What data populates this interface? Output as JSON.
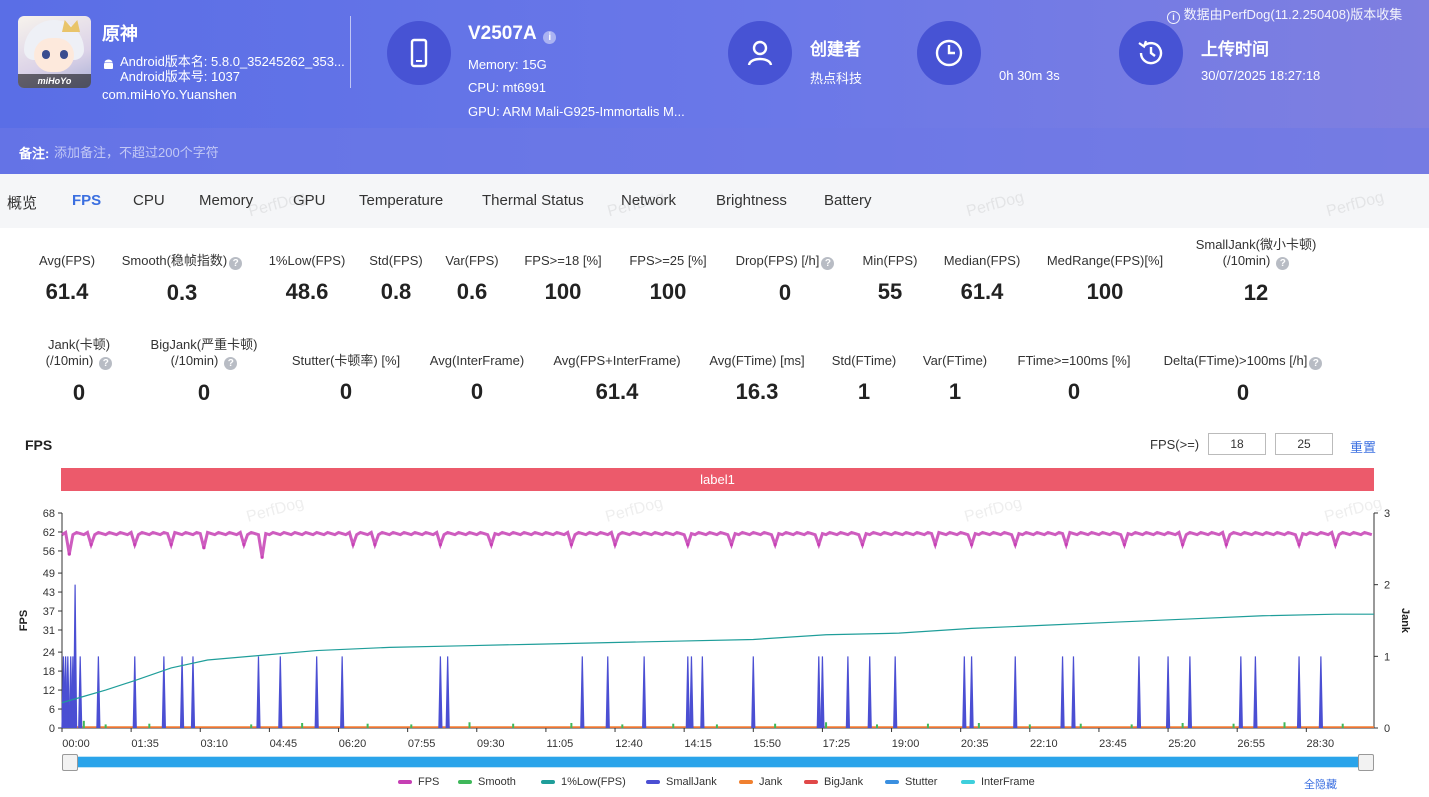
{
  "header": {
    "app_name": "原神",
    "app_icon_brand": "miHoYo",
    "android_version_name": "Android版本名: 5.8.0_35245262_353...",
    "android_version_code": "Android版本号: 1037",
    "package": "com.miHoYo.Yuanshen",
    "device_model": "V2507A",
    "memory": "Memory: 15G",
    "cpu": "CPU: mt6991",
    "gpu": "GPU: ARM Mali-G925-Immortalis M...",
    "creator_label": "创建者",
    "creator_value": "热点科技",
    "duration": "0h 30m 3s",
    "upload_label": "上传时间",
    "upload_time": "30/07/2025 18:27:18",
    "source_note": "数据由PerfDog(11.2.250408)版本收集",
    "remark_label": "备注:",
    "remark_placeholder": "添加备注，不超过200个字符"
  },
  "tabs": [
    "概览",
    "FPS",
    "CPU",
    "Memory",
    "GPU",
    "Temperature",
    "Thermal Status",
    "Network",
    "Brightness",
    "Battery"
  ],
  "active_tab": "FPS",
  "watermark": "PerfDog",
  "metrics_row1": [
    {
      "label": "Avg(FPS)",
      "value": "61.4"
    },
    {
      "label": "Smooth(稳帧指数)",
      "value": "0.3",
      "help": true
    },
    {
      "label": "1%Low(FPS)",
      "value": "48.6"
    },
    {
      "label": "Std(FPS)",
      "value": "0.8"
    },
    {
      "label": "Var(FPS)",
      "value": "0.6"
    },
    {
      "label": "FPS>=18 [%]",
      "value": "100"
    },
    {
      "label": "FPS>=25 [%]",
      "value": "100"
    },
    {
      "label": "Drop(FPS) [/h]",
      "value": "0",
      "help": true
    },
    {
      "label": "Min(FPS)",
      "value": "55"
    },
    {
      "label": "Median(FPS)",
      "value": "61.4"
    },
    {
      "label": "MedRange(FPS)[%]",
      "value": "100"
    },
    {
      "label": "SmallJank(微小卡顿)",
      "label2": "(/10min)",
      "value": "12",
      "help": true
    }
  ],
  "metrics_row2": [
    {
      "label": "Jank(卡顿)",
      "label2": "(/10min)",
      "value": "0",
      "help": true
    },
    {
      "label": "BigJank(严重卡顿)",
      "label2": "(/10min)",
      "value": "0",
      "help": true
    },
    {
      "label": "Stutter(卡顿率) [%]",
      "value": "0"
    },
    {
      "label": "Avg(InterFrame)",
      "value": "0"
    },
    {
      "label": "Avg(FPS+InterFrame)",
      "value": "61.4"
    },
    {
      "label": "Avg(FTime) [ms]",
      "value": "16.3"
    },
    {
      "label": "Std(FTime)",
      "value": "1"
    },
    {
      "label": "Var(FTime)",
      "value": "1"
    },
    {
      "label": "FTime>=100ms [%]",
      "value": "0"
    },
    {
      "label": "Delta(FTime)>100ms [/h]",
      "value": "0",
      "help": true
    }
  ],
  "chart_section": {
    "title": "FPS",
    "threshold_label": "FPS(>=)",
    "threshold1": "18",
    "threshold2": "25",
    "reset_label": "重置",
    "label_bar": "label1",
    "hide_all_label": "全隐藏"
  },
  "chart_data": {
    "type": "line",
    "title": "FPS",
    "ylabel": "FPS",
    "y2label": "Jank",
    "ylim": [
      0,
      68
    ],
    "y_ticks": [
      0,
      6,
      12,
      18,
      24,
      31,
      37,
      43,
      49,
      56,
      62,
      68
    ],
    "y2lim": [
      0,
      3
    ],
    "y2_ticks": [
      0,
      1,
      2,
      3
    ],
    "xlim_seconds": [
      0,
      1803
    ],
    "x_ticks": [
      "00:00",
      "01:35",
      "03:10",
      "04:45",
      "06:20",
      "07:55",
      "09:30",
      "11:05",
      "12:40",
      "14:15",
      "15:50",
      "17:25",
      "19:00",
      "20:35",
      "22:10",
      "23:45",
      "25:20",
      "26:55",
      "28:30"
    ],
    "legend_position": "bottom",
    "colors": {
      "FPS": "#c63fb4",
      "Smooth": "#3fb85a",
      "1%Low(FPS)": "#1f9e9a",
      "SmallJank": "#4b4fd3",
      "Jank": "#f08030",
      "BigJank": "#e04848",
      "Stutter": "#3a8fe0",
      "InterFrame": "#3ecfdc"
    },
    "series": [
      {
        "name": "FPS",
        "type": "line",
        "axis": "left",
        "baseline": 61.5,
        "dips_seconds_values": [
          [
            10,
            55
          ],
          [
            40,
            58
          ],
          [
            100,
            58
          ],
          [
            150,
            58
          ],
          [
            195,
            57
          ],
          [
            250,
            58
          ],
          [
            275,
            54
          ],
          [
            400,
            58
          ],
          [
            430,
            58
          ],
          [
            520,
            58
          ],
          [
            590,
            58
          ],
          [
            700,
            58
          ],
          [
            760,
            58
          ],
          [
            860,
            58
          ],
          [
            920,
            58
          ],
          [
            980,
            58
          ],
          [
            1040,
            58
          ],
          [
            1100,
            58
          ],
          [
            1200,
            58
          ],
          [
            1250,
            58
          ],
          [
            1310,
            58
          ],
          [
            1380,
            58
          ],
          [
            1460,
            58
          ],
          [
            1540,
            58
          ],
          [
            1600,
            58
          ],
          [
            1700,
            58
          ],
          [
            1750,
            58
          ]
        ]
      },
      {
        "name": "Smooth",
        "type": "bar",
        "axis": "right",
        "values_note": "small",
        "points_seconds_values": [
          [
            5,
            0.08
          ],
          [
            30,
            0.1
          ],
          [
            60,
            0.05
          ],
          [
            120,
            0.06
          ],
          [
            180,
            0.05
          ],
          [
            260,
            0.05
          ],
          [
            330,
            0.07
          ],
          [
            420,
            0.06
          ],
          [
            480,
            0.05
          ],
          [
            560,
            0.08
          ],
          [
            620,
            0.06
          ],
          [
            700,
            0.07
          ],
          [
            770,
            0.05
          ],
          [
            840,
            0.06
          ],
          [
            900,
            0.05
          ],
          [
            980,
            0.06
          ],
          [
            1050,
            0.08
          ],
          [
            1120,
            0.05
          ],
          [
            1190,
            0.06
          ],
          [
            1260,
            0.07
          ],
          [
            1330,
            0.05
          ],
          [
            1400,
            0.06
          ],
          [
            1470,
            0.05
          ],
          [
            1540,
            0.07
          ],
          [
            1610,
            0.06
          ],
          [
            1680,
            0.08
          ],
          [
            1760,
            0.06
          ]
        ]
      },
      {
        "name": "1%Low(FPS)",
        "type": "line",
        "axis": "left",
        "points_seconds_values": [
          [
            0,
            8
          ],
          [
            30,
            10
          ],
          [
            60,
            12
          ],
          [
            100,
            15
          ],
          [
            150,
            19
          ],
          [
            200,
            21.5
          ],
          [
            275,
            23
          ],
          [
            350,
            24.5
          ],
          [
            450,
            25.5
          ],
          [
            550,
            26
          ],
          [
            650,
            26.5
          ],
          [
            750,
            27
          ],
          [
            850,
            27.5
          ],
          [
            950,
            28
          ],
          [
            1050,
            29.5
          ],
          [
            1150,
            30
          ],
          [
            1250,
            31.5
          ],
          [
            1350,
            32.5
          ],
          [
            1450,
            33.5
          ],
          [
            1550,
            34.5
          ],
          [
            1650,
            35.5
          ],
          [
            1750,
            36
          ],
          [
            1803,
            36
          ]
        ]
      },
      {
        "name": "SmallJank",
        "type": "bar",
        "axis": "right",
        "points_seconds_values": [
          [
            2,
            1
          ],
          [
            5,
            1
          ],
          [
            8,
            1
          ],
          [
            12,
            1
          ],
          [
            15,
            1
          ],
          [
            18,
            2
          ],
          [
            25,
            1
          ],
          [
            50,
            1
          ],
          [
            100,
            1
          ],
          [
            140,
            1
          ],
          [
            165,
            1
          ],
          [
            180,
            1
          ],
          [
            270,
            1
          ],
          [
            300,
            1
          ],
          [
            350,
            1
          ],
          [
            385,
            1
          ],
          [
            520,
            1
          ],
          [
            530,
            1
          ],
          [
            715,
            1
          ],
          [
            750,
            1
          ],
          [
            800,
            1
          ],
          [
            860,
            1
          ],
          [
            865,
            1
          ],
          [
            880,
            1
          ],
          [
            950,
            1
          ],
          [
            1040,
            1
          ],
          [
            1045,
            1
          ],
          [
            1080,
            1
          ],
          [
            1110,
            1
          ],
          [
            1145,
            1
          ],
          [
            1240,
            1
          ],
          [
            1250,
            1
          ],
          [
            1310,
            1
          ],
          [
            1375,
            1
          ],
          [
            1390,
            1
          ],
          [
            1480,
            1
          ],
          [
            1520,
            1
          ],
          [
            1550,
            1
          ],
          [
            1620,
            1
          ],
          [
            1640,
            1
          ],
          [
            1700,
            1
          ],
          [
            1730,
            1
          ]
        ]
      },
      {
        "name": "Jank",
        "type": "line",
        "axis": "right",
        "constant": 0
      },
      {
        "name": "BigJank",
        "type": "line",
        "axis": "right",
        "constant": 0
      },
      {
        "name": "Stutter",
        "type": "line",
        "axis": "right",
        "constant": 0
      },
      {
        "name": "InterFrame",
        "type": "line",
        "axis": "right",
        "constant": 0
      }
    ]
  },
  "legend": [
    "FPS",
    "Smooth",
    "1%Low(FPS)",
    "SmallJank",
    "Jank",
    "BigJank",
    "Stutter",
    "InterFrame"
  ]
}
